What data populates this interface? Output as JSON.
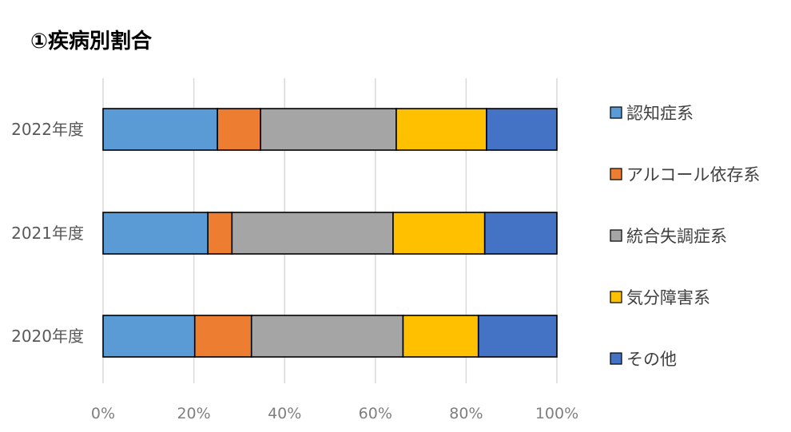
{
  "chart_data": {
    "type": "bar",
    "orientation": "horizontal",
    "stacked": "percent",
    "title": "①疾病別割合",
    "categories": [
      "2022年度",
      "2021年度",
      "2020年度"
    ],
    "series": [
      {
        "name": "認知症系",
        "color": "#5b9bd5",
        "values": [
          25.2,
          23.1,
          20.2
        ]
      },
      {
        "name": "アルコール依存系",
        "color": "#ed7d31",
        "values": [
          9.5,
          5.3,
          12.5
        ]
      },
      {
        "name": "統合失調症系",
        "color": "#a5a5a5",
        "values": [
          29.9,
          35.5,
          33.4
        ]
      },
      {
        "name": "気分障害系",
        "color": "#ffc000",
        "values": [
          19.9,
          20.2,
          16.6
        ]
      },
      {
        "name": "その他",
        "color": "#4472c4",
        "values": [
          15.5,
          15.9,
          17.3
        ]
      }
    ],
    "xlim": [
      0,
      100
    ],
    "xticks": [
      "0%",
      "20%",
      "40%",
      "60%",
      "80%",
      "100%"
    ],
    "grid": true,
    "legend_position": "right"
  }
}
